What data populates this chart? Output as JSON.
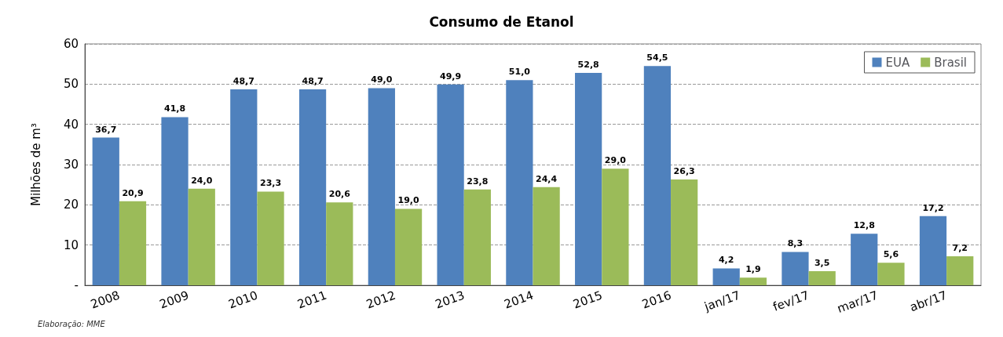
{
  "chart_data": {
    "type": "bar",
    "title": "Consumo de Etanol",
    "ylabel": "Milhões de m³",
    "categories": [
      "2008",
      "2009",
      "2010",
      "2011",
      "2012",
      "2013",
      "2014",
      "2015",
      "2016",
      "jan/17",
      "fev/17",
      "mar/17",
      "abr/17"
    ],
    "series": [
      {
        "name": "EUA",
        "color": "#4f81bd",
        "values": [
          36.7,
          41.8,
          48.7,
          48.7,
          49.0,
          49.9,
          51.0,
          52.8,
          54.5,
          4.2,
          8.3,
          12.8,
          17.2
        ],
        "value_labels": [
          "36,7",
          "41,8",
          "48,7",
          "48,7",
          "49,0",
          "49,9",
          "51,0",
          "52,8",
          "54,5",
          "4,2",
          "8,3",
          "12,8",
          "17,2"
        ]
      },
      {
        "name": "Brasil",
        "color": "#9bbb59",
        "values": [
          20.9,
          24.0,
          23.3,
          20.6,
          19.0,
          23.8,
          24.4,
          29.0,
          26.3,
          1.9,
          3.5,
          5.6,
          7.2
        ],
        "value_labels": [
          "20,9",
          "24,0",
          "23,3",
          "20,6",
          "19,0",
          "23,8",
          "24,4",
          "29,0",
          "26,3",
          "1,9",
          "3,5",
          "5,6",
          "7,2"
        ]
      }
    ],
    "ylim": [
      0,
      60
    ],
    "yticks": [
      {
        "value": 0,
        "label": "-"
      },
      10,
      20,
      30,
      40,
      50,
      60
    ],
    "grid": "y",
    "legend": "top right",
    "annotations": [
      "Elaboração: MME"
    ]
  }
}
